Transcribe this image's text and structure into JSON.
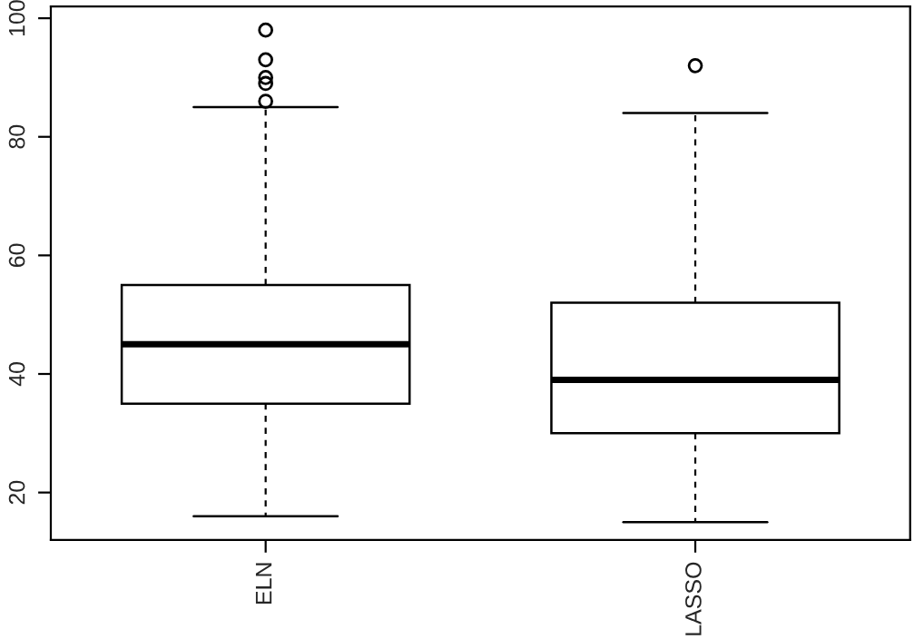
{
  "chart_data": {
    "type": "box",
    "categories": [
      "ELN",
      "LASSO"
    ],
    "boxes": [
      {
        "low": 16,
        "q1": 35,
        "median": 45,
        "q3": 55,
        "high": 85,
        "outliers": [
          98,
          93,
          90,
          89,
          86
        ]
      },
      {
        "low": 15,
        "q1": 30,
        "median": 39,
        "q3": 52,
        "high": 84,
        "outliers": [
          92
        ]
      }
    ],
    "ylim": [
      12,
      102
    ],
    "yticks": [
      20,
      40,
      60,
      80,
      100
    ],
    "grid": false
  }
}
